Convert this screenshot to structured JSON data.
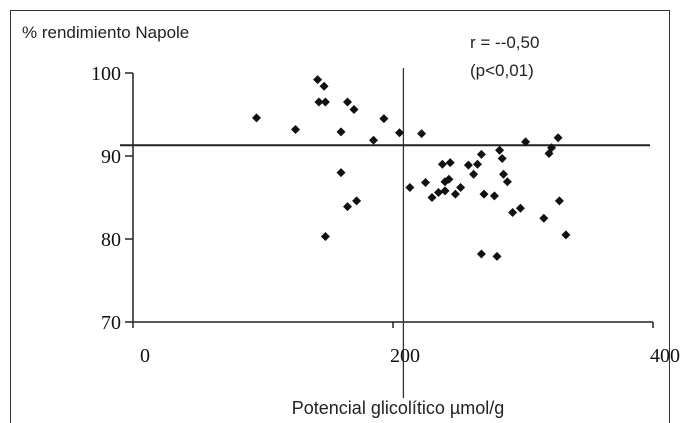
{
  "chart_data": {
    "type": "scatter",
    "title": "",
    "ylabel": "% rendimiento Napole",
    "xlabel": "Potencial glicolítico µmol/g",
    "annotation_r": "r = --0,50",
    "annotation_p": "(p<0,01)",
    "xlim": [
      0,
      400
    ],
    "ylim": [
      70,
      100
    ],
    "x_ticks": [
      0,
      200,
      400
    ],
    "x_tick_labels": [
      "0",
      "200",
      "400"
    ],
    "y_ticks": [
      70,
      80,
      90,
      100
    ],
    "y_tick_labels": [
      "70",
      "80",
      "90",
      "100"
    ],
    "reference_lines": {
      "vertical_x": 208,
      "horizontal_y": 91.3
    },
    "grid": false,
    "marker_color": "#111111",
    "points": [
      {
        "x": 95,
        "y": 94.6
      },
      {
        "x": 125,
        "y": 93.2
      },
      {
        "x": 142,
        "y": 99.2
      },
      {
        "x": 147,
        "y": 98.4
      },
      {
        "x": 143,
        "y": 96.5
      },
      {
        "x": 148,
        "y": 96.5
      },
      {
        "x": 165,
        "y": 96.5
      },
      {
        "x": 170,
        "y": 95.6
      },
      {
        "x": 193,
        "y": 94.5
      },
      {
        "x": 160,
        "y": 92.9
      },
      {
        "x": 185,
        "y": 91.9
      },
      {
        "x": 205,
        "y": 92.8
      },
      {
        "x": 222,
        "y": 92.7
      },
      {
        "x": 160,
        "y": 88.0
      },
      {
        "x": 165,
        "y": 83.9
      },
      {
        "x": 172,
        "y": 84.6
      },
      {
        "x": 148,
        "y": 80.3
      },
      {
        "x": 213,
        "y": 86.2
      },
      {
        "x": 225,
        "y": 86.8
      },
      {
        "x": 230,
        "y": 85.0
      },
      {
        "x": 235,
        "y": 85.6
      },
      {
        "x": 240,
        "y": 86.9
      },
      {
        "x": 243,
        "y": 87.2
      },
      {
        "x": 238,
        "y": 89.0
      },
      {
        "x": 244,
        "y": 89.2
      },
      {
        "x": 240,
        "y": 85.8
      },
      {
        "x": 248,
        "y": 85.4
      },
      {
        "x": 252,
        "y": 86.2
      },
      {
        "x": 258,
        "y": 88.9
      },
      {
        "x": 262,
        "y": 87.8
      },
      {
        "x": 265,
        "y": 89.0
      },
      {
        "x": 268,
        "y": 90.2
      },
      {
        "x": 270,
        "y": 85.4
      },
      {
        "x": 278,
        "y": 85.2
      },
      {
        "x": 282,
        "y": 90.7
      },
      {
        "x": 284,
        "y": 89.7
      },
      {
        "x": 285,
        "y": 87.8
      },
      {
        "x": 288,
        "y": 86.9
      },
      {
        "x": 292,
        "y": 83.2
      },
      {
        "x": 298,
        "y": 83.7
      },
      {
        "x": 302,
        "y": 91.7
      },
      {
        "x": 268,
        "y": 78.2
      },
      {
        "x": 280,
        "y": 77.9
      },
      {
        "x": 316,
        "y": 82.5
      },
      {
        "x": 320,
        "y": 90.3
      },
      {
        "x": 322,
        "y": 91.0
      },
      {
        "x": 327,
        "y": 92.2
      },
      {
        "x": 328,
        "y": 84.6
      },
      {
        "x": 333,
        "y": 80.5
      }
    ]
  }
}
